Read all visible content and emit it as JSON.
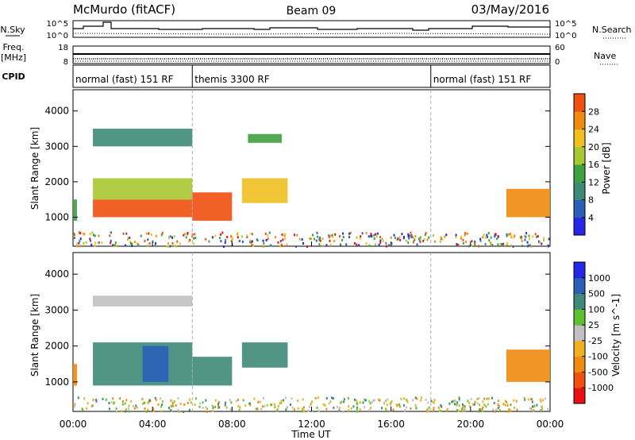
{
  "header": {
    "station": "McMurdo (fitACF)",
    "beam": "Beam 09",
    "date": "03/May/2016"
  },
  "left_labels": {
    "nsky": "N.Sky",
    "freq": "Freq.",
    "freq_unit": "[MHz]",
    "cpid": "CPID"
  },
  "right_labels": {
    "nsearch": "N.Search",
    "nave": "Nave"
  },
  "ticks": {
    "noise_top": "10^5",
    "noise_bottom": "10^0",
    "freq_top": "18",
    "freq_bottom": "8",
    "nave_top": "60",
    "nave_bottom": "0"
  },
  "cpid_segments": [
    {
      "label": "normal (fast) 151 RF",
      "start": 0
    },
    {
      "label": "themis 3300 RF",
      "start": 6
    },
    {
      "label": "normal (fast) 151 RF",
      "start": 18
    }
  ],
  "colors": {
    "power": [
      "#2626e6",
      "#2a5fb8",
      "#3d8a78",
      "#3fa03f",
      "#a8c832",
      "#f0c020",
      "#f08a10",
      "#f05010",
      "#e81010"
    ],
    "velocity": [
      "#e81010",
      "#f05010",
      "#f08a10",
      "#f0b020",
      "#c0c0c0",
      "#5cc030",
      "#3d8a78",
      "#2a5fb8",
      "#2626e6"
    ]
  },
  "chart_data": [
    {
      "type": "heatmap",
      "title": "Power",
      "xlabel": "",
      "ylabel": "Slant Range [km]",
      "xlim": [
        0,
        24
      ],
      "ylim": [
        180,
        4600
      ],
      "yticks": [
        1000,
        2000,
        3000,
        4000
      ],
      "colorbar": {
        "label": "Power [dB]",
        "ticks": [
          "4",
          "8",
          "12",
          "16",
          "20",
          "24",
          "28"
        ],
        "range": [
          0,
          30
        ]
      },
      "bands": [
        {
          "t0": 0.0,
          "t1": 0.2,
          "r0": 900,
          "r1": 1500,
          "v": 12
        },
        {
          "t0": 1.0,
          "t1": 6.0,
          "r0": 1000,
          "r1": 1500,
          "v": 24
        },
        {
          "t0": 1.0,
          "t1": 6.0,
          "r0": 1500,
          "r1": 2100,
          "v": 14
        },
        {
          "t0": 1.0,
          "t1": 6.0,
          "r0": 3000,
          "r1": 3500,
          "v": 8
        },
        {
          "t0": 6.0,
          "t1": 8.0,
          "r0": 900,
          "r1": 1700,
          "v": 26
        },
        {
          "t0": 8.5,
          "t1": 10.8,
          "r0": 1400,
          "r1": 2100,
          "v": 18
        },
        {
          "t0": 8.8,
          "t1": 10.5,
          "r0": 3100,
          "r1": 3350,
          "v": 10
        },
        {
          "t0": 21.8,
          "t1": 24.0,
          "r0": 1000,
          "r1": 1800,
          "v": 22
        }
      ]
    },
    {
      "type": "heatmap",
      "title": "Velocity",
      "xlabel": "Time UT",
      "ylabel": "Slant Range [km]",
      "xlim": [
        0,
        24
      ],
      "ylim": [
        180,
        4600
      ],
      "yticks": [
        1000,
        2000,
        3000,
        4000
      ],
      "xticks": [
        "00:00",
        "04:00",
        "08:00",
        "12:00",
        "16:00",
        "20:00",
        "00:00"
      ],
      "colorbar": {
        "label": "Velocity [m s^-1]",
        "ticks": [
          "-1000",
          "-500",
          "-100",
          "-25",
          "25",
          "100",
          "500",
          "1000"
        ]
      },
      "bands": [
        {
          "t0": 0.0,
          "t1": 0.2,
          "r0": 900,
          "r1": 1500,
          "v": -200
        },
        {
          "t0": 1.0,
          "t1": 6.0,
          "r0": 900,
          "r1": 2100,
          "v": 300
        },
        {
          "t0": 3.5,
          "t1": 4.8,
          "r0": 1000,
          "r1": 2000,
          "v": 900
        },
        {
          "t0": 6.0,
          "t1": 8.0,
          "r0": 900,
          "r1": 1700,
          "v": 400
        },
        {
          "t0": 1.0,
          "t1": 6.0,
          "r0": 3100,
          "r1": 3400,
          "v": 10
        },
        {
          "t0": 8.5,
          "t1": 10.8,
          "r0": 1400,
          "r1": 2100,
          "v": 200
        },
        {
          "t0": 21.8,
          "t1": 24.0,
          "r0": 1000,
          "r1": 1900,
          "v": -300
        }
      ]
    }
  ]
}
